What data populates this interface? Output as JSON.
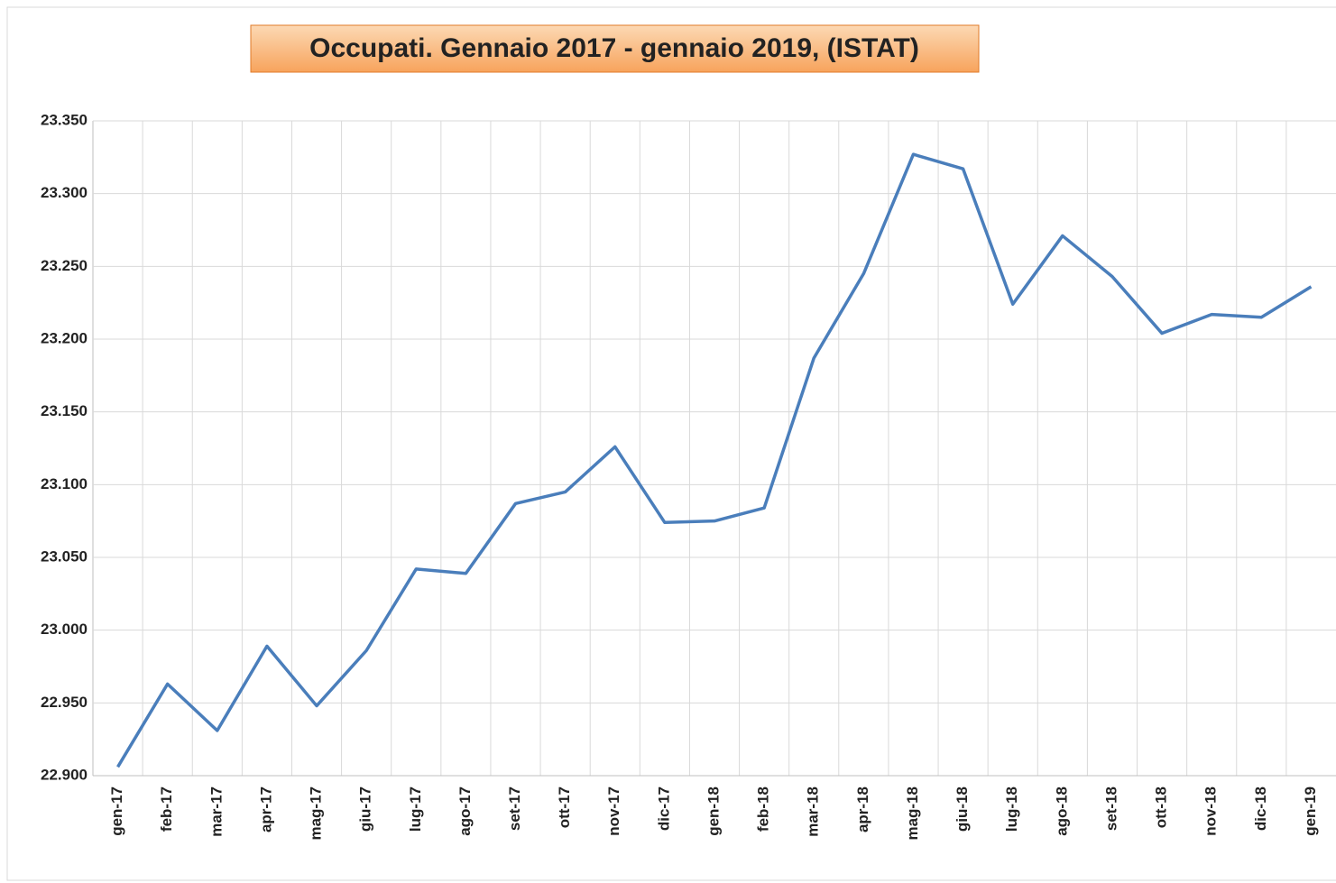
{
  "chart_data": {
    "type": "line",
    "title": "Occupati. Gennaio 2017 - gennaio 2019, (ISTAT)",
    "categories": [
      "gen-17",
      "feb-17",
      "mar-17",
      "apr-17",
      "mag-17",
      "giu-17",
      "lug-17",
      "ago-17",
      "set-17",
      "ott-17",
      "nov-17",
      "dic-17",
      "gen-18",
      "feb-18",
      "mar-18",
      "apr-18",
      "mag-18",
      "giu-18",
      "lug-18",
      "ago-18",
      "set-18",
      "ott-18",
      "nov-18",
      "dic-18",
      "gen-19"
    ],
    "series": [
      {
        "name": "Occupati",
        "color": "#4a7ebb",
        "values": [
          22906,
          22963,
          22931,
          22989,
          22948,
          22986,
          23042,
          23039,
          23087,
          23095,
          23126,
          23074,
          23075,
          23084,
          23187,
          23245,
          23327,
          23317,
          23224,
          23271,
          23243,
          23204,
          23217,
          23215,
          23236
        ]
      }
    ],
    "ylim": [
      22900,
      23350
    ],
    "yticks": [
      {
        "value": 22900,
        "label": "22.900"
      },
      {
        "value": 22950,
        "label": "22.950"
      },
      {
        "value": 23000,
        "label": "23.000"
      },
      {
        "value": 23050,
        "label": "23.050"
      },
      {
        "value": 23100,
        "label": "23.100"
      },
      {
        "value": 23150,
        "label": "23.150"
      },
      {
        "value": 23200,
        "label": "23.200"
      },
      {
        "value": 23250,
        "label": "23.250"
      },
      {
        "value": 23300,
        "label": "23.300"
      },
      {
        "value": 23350,
        "label": "23.350"
      }
    ],
    "grid": true
  }
}
